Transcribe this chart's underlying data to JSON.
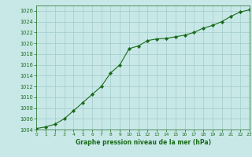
{
  "x": [
    0,
    1,
    2,
    3,
    4,
    5,
    6,
    7,
    8,
    9,
    10,
    11,
    12,
    13,
    14,
    15,
    16,
    17,
    18,
    19,
    20,
    21,
    22,
    23
  ],
  "y": [
    1004.2,
    1004.5,
    1005.0,
    1006.0,
    1007.5,
    1009.0,
    1010.5,
    1012.0,
    1014.5,
    1016.0,
    1019.0,
    1019.5,
    1020.5,
    1020.8,
    1020.9,
    1021.2,
    1021.5,
    1022.0,
    1022.8,
    1023.3,
    1024.0,
    1025.0,
    1025.8,
    1026.2
  ],
  "line_color": "#1a6b1a",
  "marker_color": "#1a6b1a",
  "bg_color": "#c8e8e8",
  "grid_color": "#a8cece",
  "xlabel": "Graphe pression niveau de la mer (hPa)",
  "ylim": [
    1004,
    1027
  ],
  "yticks": [
    1004,
    1006,
    1008,
    1010,
    1012,
    1014,
    1016,
    1018,
    1020,
    1022,
    1024,
    1026
  ],
  "xlim": [
    0,
    23
  ],
  "xticks": [
    0,
    1,
    2,
    3,
    4,
    5,
    6,
    7,
    8,
    9,
    10,
    11,
    12,
    13,
    14,
    15,
    16,
    17,
    18,
    19,
    20,
    21,
    22,
    23
  ]
}
